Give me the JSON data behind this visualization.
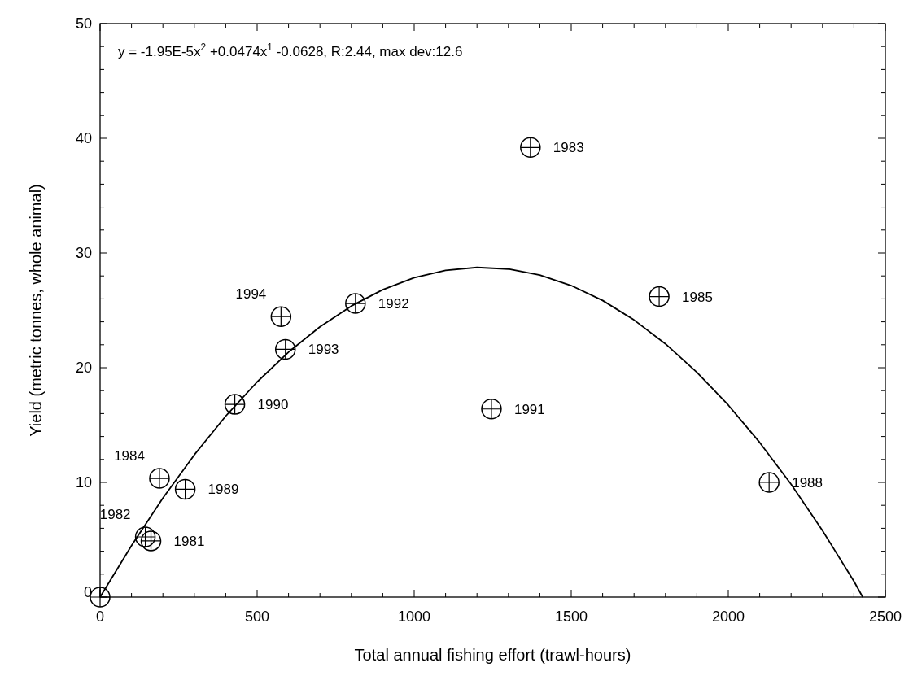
{
  "chart_data": {
    "type": "scatter",
    "xlabel": "Total annual fishing effort (trawl-hours)",
    "ylabel": "Yield (metric tonnes, whole animal)",
    "xlim": [
      0,
      2500
    ],
    "ylim": [
      0,
      50
    ],
    "xticks": [
      0,
      500,
      1000,
      1500,
      2000,
      2500
    ],
    "yticks": [
      0,
      10,
      20,
      30,
      40,
      50
    ],
    "grid": false,
    "annotations": [
      "y = -1.95E-5x$^{2}$ +0.0474x$^{1}$ -0.0628, R:2.44, max dev:12.6",
      {
        "text": "1981",
        "x": 162,
        "y": 4.9
      },
      {
        "text": "1982",
        "x": 144,
        "y": 5.25
      },
      {
        "text": "1983",
        "x": 1370,
        "y": 39.2
      },
      {
        "text": "1984",
        "x": 189,
        "y": 10.35
      },
      {
        "text": "1985",
        "x": 1780,
        "y": 26.2
      },
      {
        "text": "1988",
        "x": 2130,
        "y": 10.0
      },
      {
        "text": "1989",
        "x": 271,
        "y": 9.4
      },
      {
        "text": "1990",
        "x": 429,
        "y": 16.8
      },
      {
        "text": "1991",
        "x": 1246,
        "y": 16.4
      },
      {
        "text": "1992",
        "x": 813,
        "y": 25.6
      },
      {
        "text": "1993",
        "x": 590,
        "y": 21.6
      },
      {
        "text": "1994",
        "x": 576,
        "y": 24.45
      }
    ],
    "series": [
      {
        "type": "scatter",
        "color": "#000000",
        "marker": "circle",
        "x": [
          0,
          162,
          144,
          1370,
          189,
          1780,
          2130,
          271,
          429,
          1246,
          813,
          590,
          576
        ],
        "values": [
          0,
          4.9,
          5.25,
          39.2,
          10.35,
          26.2,
          10.0,
          9.4,
          16.8,
          16.4,
          25.6,
          21.6,
          24.45
        ]
      },
      {
        "type": "line",
        "color": "#000000",
        "marker": "none",
        "x": [
          0,
          100,
          200,
          300,
          400,
          500,
          600,
          700,
          800,
          900,
          1000,
          1100,
          1200,
          1300,
          1400,
          1500,
          1600,
          1700,
          1800,
          1900,
          2000,
          2100,
          2200,
          2300,
          2400,
          2428
        ],
        "values": [
          0,
          4.48,
          8.64,
          12.4,
          15.78,
          18.76,
          21.36,
          23.56,
          25.38,
          26.8,
          27.84,
          28.48,
          28.74,
          28.6,
          28.08,
          27.16,
          25.86,
          24.16,
          22.08,
          19.6,
          16.74,
          13.48,
          9.84,
          5.8,
          1.38,
          0
        ]
      }
    ]
  }
}
